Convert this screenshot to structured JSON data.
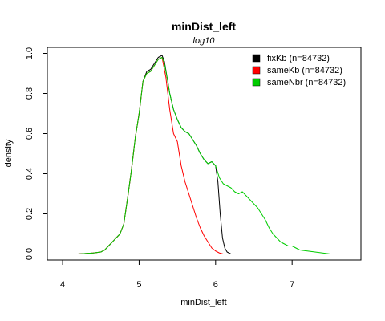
{
  "chart_data": {
    "type": "line",
    "title": "minDist_left",
    "subtitle": "log10",
    "xlabel": "minDist_left",
    "ylabel": "density",
    "xlim": [
      3.8,
      7.9
    ],
    "ylim": [
      -0.03,
      1.03
    ],
    "x_ticks": [
      4,
      5,
      6,
      7
    ],
    "y_ticks": [
      0.0,
      0.2,
      0.4,
      0.6,
      0.8,
      1.0
    ],
    "x_tick_labels": [
      "4",
      "5",
      "6",
      "7"
    ],
    "y_tick_labels": [
      "0.0",
      "0.2",
      "0.4",
      "0.6",
      "0.8",
      "1.0"
    ],
    "grid": false,
    "legend_position": "top-right",
    "series": [
      {
        "name": "fixKb (n=84732)",
        "color": "#000000",
        "x": [
          3.95,
          4.2,
          4.4,
          4.5,
          4.55,
          4.6,
          4.65,
          4.7,
          4.75,
          4.8,
          4.85,
          4.9,
          4.95,
          5.0,
          5.05,
          5.1,
          5.15,
          5.2,
          5.25,
          5.3,
          5.33,
          5.37,
          5.4,
          5.45,
          5.5,
          5.55,
          5.6,
          5.65,
          5.7,
          5.75,
          5.8,
          5.85,
          5.9,
          5.95,
          6.0,
          6.03,
          6.06,
          6.09,
          6.12,
          6.15,
          6.2,
          6.25,
          6.3
        ],
        "y": [
          0.0,
          0.0,
          0.005,
          0.01,
          0.02,
          0.04,
          0.06,
          0.08,
          0.1,
          0.15,
          0.28,
          0.42,
          0.58,
          0.7,
          0.86,
          0.91,
          0.92,
          0.95,
          0.98,
          0.99,
          0.96,
          0.87,
          0.8,
          0.72,
          0.67,
          0.63,
          0.61,
          0.6,
          0.57,
          0.54,
          0.5,
          0.47,
          0.45,
          0.46,
          0.44,
          0.36,
          0.2,
          0.08,
          0.03,
          0.01,
          0.0,
          0.0,
          0.0
        ]
      },
      {
        "name": "sameKb (n=84732)",
        "color": "#ff0000",
        "x": [
          3.95,
          4.2,
          4.4,
          4.5,
          4.55,
          4.6,
          4.65,
          4.7,
          4.75,
          4.8,
          4.85,
          4.9,
          4.95,
          5.0,
          5.05,
          5.1,
          5.15,
          5.2,
          5.25,
          5.3,
          5.35,
          5.4,
          5.45,
          5.5,
          5.55,
          5.6,
          5.65,
          5.7,
          5.75,
          5.8,
          5.85,
          5.9,
          5.95,
          6.0,
          6.05,
          6.1,
          6.2,
          6.3
        ],
        "y": [
          0.0,
          0.0,
          0.005,
          0.01,
          0.02,
          0.04,
          0.06,
          0.08,
          0.1,
          0.15,
          0.28,
          0.42,
          0.58,
          0.7,
          0.86,
          0.9,
          0.91,
          0.94,
          0.97,
          0.98,
          0.88,
          0.72,
          0.6,
          0.56,
          0.44,
          0.36,
          0.3,
          0.24,
          0.18,
          0.13,
          0.09,
          0.06,
          0.03,
          0.015,
          0.005,
          0.0,
          0.0,
          0.0
        ]
      },
      {
        "name": "sameNbr (n=84732)",
        "color": "#00cc00",
        "x": [
          3.95,
          4.2,
          4.4,
          4.5,
          4.55,
          4.6,
          4.65,
          4.7,
          4.75,
          4.8,
          4.85,
          4.9,
          4.95,
          5.0,
          5.05,
          5.1,
          5.15,
          5.2,
          5.25,
          5.3,
          5.33,
          5.37,
          5.4,
          5.45,
          5.5,
          5.55,
          5.6,
          5.65,
          5.7,
          5.75,
          5.8,
          5.85,
          5.9,
          5.95,
          6.0,
          6.05,
          6.1,
          6.15,
          6.2,
          6.25,
          6.3,
          6.35,
          6.4,
          6.45,
          6.5,
          6.55,
          6.6,
          6.65,
          6.7,
          6.75,
          6.8,
          6.85,
          6.9,
          6.95,
          7.0,
          7.05,
          7.1,
          7.2,
          7.3,
          7.4,
          7.5,
          7.6,
          7.7
        ],
        "y": [
          0.0,
          0.0,
          0.005,
          0.01,
          0.02,
          0.04,
          0.06,
          0.08,
          0.1,
          0.15,
          0.28,
          0.42,
          0.58,
          0.7,
          0.86,
          0.9,
          0.91,
          0.94,
          0.97,
          0.98,
          0.95,
          0.87,
          0.8,
          0.72,
          0.67,
          0.63,
          0.61,
          0.6,
          0.57,
          0.54,
          0.5,
          0.47,
          0.45,
          0.46,
          0.44,
          0.38,
          0.35,
          0.34,
          0.33,
          0.31,
          0.3,
          0.31,
          0.29,
          0.27,
          0.25,
          0.23,
          0.2,
          0.17,
          0.13,
          0.1,
          0.08,
          0.06,
          0.05,
          0.04,
          0.04,
          0.03,
          0.02,
          0.015,
          0.01,
          0.005,
          0.0,
          0.0,
          0.0
        ]
      }
    ]
  }
}
